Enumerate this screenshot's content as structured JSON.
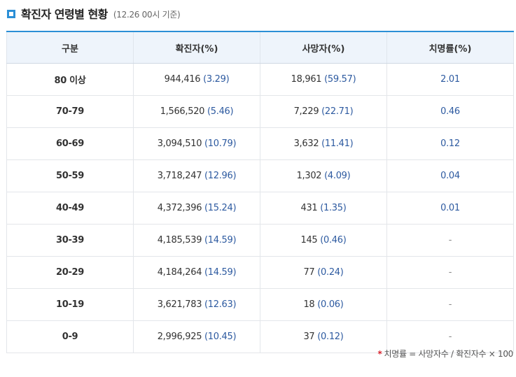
{
  "header": {
    "title": "확진자 연령별 현황",
    "subtitle": "(12.26 00시 기준)"
  },
  "table": {
    "columns": [
      "구분",
      "확진자(%)",
      "사망자(%)",
      "치명률(%)"
    ],
    "rows": [
      {
        "age": "80 이상",
        "cases": "944,416",
        "cases_pct": "(3.29)",
        "deaths": "18,961",
        "deaths_pct": "(59.57)",
        "fatality": "2.01"
      },
      {
        "age": "70-79",
        "cases": "1,566,520",
        "cases_pct": "(5.46)",
        "deaths": "7,229",
        "deaths_pct": "(22.71)",
        "fatality": "0.46"
      },
      {
        "age": "60-69",
        "cases": "3,094,510",
        "cases_pct": "(10.79)",
        "deaths": "3,632",
        "deaths_pct": "(11.41)",
        "fatality": "0.12"
      },
      {
        "age": "50-59",
        "cases": "3,718,247",
        "cases_pct": "(12.96)",
        "deaths": "1,302",
        "deaths_pct": "(4.09)",
        "fatality": "0.04"
      },
      {
        "age": "40-49",
        "cases": "4,372,396",
        "cases_pct": "(15.24)",
        "deaths": "431",
        "deaths_pct": "(1.35)",
        "fatality": "0.01"
      },
      {
        "age": "30-39",
        "cases": "4,185,539",
        "cases_pct": "(14.59)",
        "deaths": "145",
        "deaths_pct": "(0.46)",
        "fatality": "-"
      },
      {
        "age": "20-29",
        "cases": "4,184,264",
        "cases_pct": "(14.59)",
        "deaths": "77",
        "deaths_pct": "(0.24)",
        "fatality": "-"
      },
      {
        "age": "10-19",
        "cases": "3,621,783",
        "cases_pct": "(12.63)",
        "deaths": "18",
        "deaths_pct": "(0.06)",
        "fatality": "-"
      },
      {
        "age": "0-9",
        "cases": "2,996,925",
        "cases_pct": "(10.45)",
        "deaths": "37",
        "deaths_pct": "(0.12)",
        "fatality": "-"
      }
    ]
  },
  "footnote": {
    "marker": "*",
    "text": "치명률 = 사망자수 / 확진자수 × 100"
  },
  "colors": {
    "accent": "#2b8fd6",
    "header_bg": "#eef4fb",
    "value_blue": "#2d5aa0",
    "footnote_marker": "#d9232d"
  },
  "icons": {
    "title_marker": "square-bullet-icon"
  }
}
